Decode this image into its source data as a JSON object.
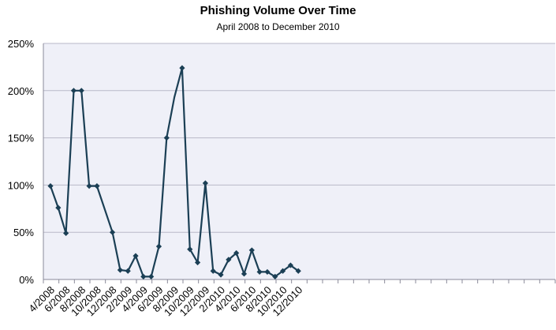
{
  "chart_data": {
    "type": "line",
    "title": "Phishing Volume Over Time",
    "subtitle": "April 2008 to December 2010",
    "x_tick_labels": [
      "4/2008",
      "6/2008",
      "8/2008",
      "10/2008",
      "12/2008",
      "2/2009",
      "4/2009",
      "6/2009",
      "8/2009",
      "10/2009",
      "12/2009",
      "2/2010",
      "4/2010",
      "6/2010",
      "8/2010",
      "10/2010",
      "12/2010"
    ],
    "x": [
      "4/2008",
      "5/2008",
      "6/2008",
      "7/2008",
      "8/2008",
      "9/2008",
      "10/2008",
      "11/2008",
      "12/2008",
      "1/2009",
      "2/2009",
      "3/2009",
      "4/2009",
      "5/2009",
      "6/2009",
      "7/2009",
      "8/2009",
      "9/2009",
      "10/2009",
      "11/2009",
      "12/2009",
      "1/2010",
      "2/2010",
      "3/2010",
      "4/2010",
      "5/2010",
      "6/2010",
      "7/2010",
      "8/2010",
      "9/2010",
      "10/2010",
      "11/2010",
      "12/2010"
    ],
    "series": [
      {
        "values": [
          99,
          76,
          49,
          200,
          200,
          99,
          99,
          null,
          50,
          10,
          9,
          25,
          3,
          3,
          35,
          150,
          193,
          224,
          32,
          18,
          102,
          9,
          5,
          21,
          28,
          6,
          31,
          8,
          8,
          3,
          9,
          15,
          9
        ],
        "markers": [
          true,
          true,
          true,
          true,
          true,
          true,
          true,
          false,
          true,
          true,
          true,
          true,
          true,
          true,
          true,
          true,
          false,
          true,
          true,
          true,
          true,
          true,
          true,
          true,
          true,
          true,
          true,
          true,
          true,
          true,
          true,
          true,
          true
        ]
      }
    ],
    "y_tick_labels": [
      "0%",
      "50%",
      "100%",
      "150%",
      "200%",
      "250%"
    ],
    "ylim": [
      0,
      250
    ],
    "grid": true,
    "line_color": "#1b3f55",
    "plot_background": "#eff0f8",
    "grid_color": "#b9b9c9"
  }
}
